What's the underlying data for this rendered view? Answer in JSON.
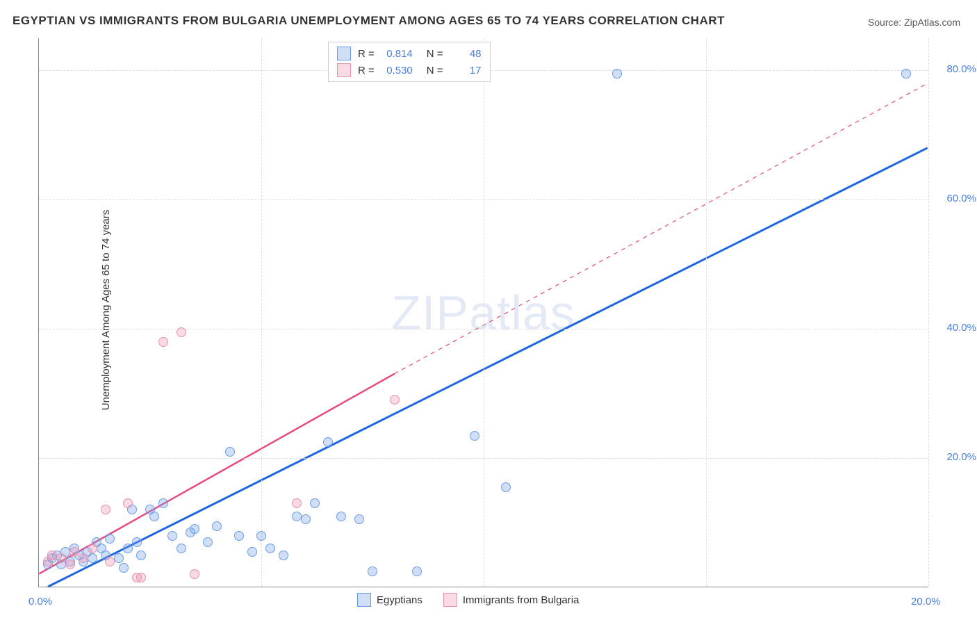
{
  "title": "EGYPTIAN VS IMMIGRANTS FROM BULGARIA UNEMPLOYMENT AMONG AGES 65 TO 74 YEARS CORRELATION CHART",
  "source": "Source: ZipAtlas.com",
  "y_axis_label": "Unemployment Among Ages 65 to 74 years",
  "watermark": "ZIPatlas",
  "chart": {
    "type": "scatter",
    "xlim": [
      0,
      20
    ],
    "ylim": [
      0,
      85
    ],
    "x_ticks": [
      0,
      5,
      10,
      15,
      20
    ],
    "x_tick_labels": [
      "0.0%",
      "",
      "",
      "",
      "20.0%"
    ],
    "y_ticks": [
      20,
      40,
      60,
      80
    ],
    "y_tick_labels": [
      "20.0%",
      "40.0%",
      "60.0%",
      "80.0%"
    ],
    "background_color": "#ffffff",
    "grid_color": "#dddddd",
    "series": [
      {
        "name": "Egyptians",
        "color_fill": "rgba(120,160,230,0.35)",
        "color_stroke": "#6a9de8",
        "marker_radius": 7,
        "r_value": "0.814",
        "n_value": "48",
        "trend": {
          "color": "#1e66e0",
          "width": 3,
          "x1": 0.2,
          "y1": 0,
          "x2": 20,
          "y2": 68,
          "dash_from_x": 20
        },
        "points": [
          [
            0.2,
            3.5
          ],
          [
            0.3,
            4.5
          ],
          [
            0.4,
            5
          ],
          [
            0.5,
            3.5
          ],
          [
            0.6,
            5.5
          ],
          [
            0.7,
            4
          ],
          [
            0.8,
            6
          ],
          [
            0.9,
            5
          ],
          [
            1.0,
            4
          ],
          [
            1.1,
            5.5
          ],
          [
            1.2,
            4.5
          ],
          [
            1.3,
            7
          ],
          [
            1.4,
            6
          ],
          [
            1.5,
            5
          ],
          [
            1.6,
            7.5
          ],
          [
            1.8,
            4.5
          ],
          [
            1.9,
            3
          ],
          [
            2.0,
            6
          ],
          [
            2.1,
            12
          ],
          [
            2.2,
            7
          ],
          [
            2.3,
            5
          ],
          [
            2.5,
            12
          ],
          [
            2.6,
            11
          ],
          [
            2.8,
            13
          ],
          [
            3.0,
            8
          ],
          [
            3.2,
            6
          ],
          [
            3.4,
            8.5
          ],
          [
            3.5,
            9
          ],
          [
            3.8,
            7
          ],
          [
            4.0,
            9.5
          ],
          [
            4.3,
            21
          ],
          [
            4.5,
            8
          ],
          [
            4.8,
            5.5
          ],
          [
            5.0,
            8
          ],
          [
            5.2,
            6
          ],
          [
            5.5,
            5
          ],
          [
            5.8,
            11
          ],
          [
            6.0,
            10.5
          ],
          [
            6.5,
            22.5
          ],
          [
            6.8,
            11
          ],
          [
            7.2,
            10.5
          ],
          [
            7.5,
            2.5
          ],
          [
            8.5,
            2.5
          ],
          [
            9.8,
            23.5
          ],
          [
            10.5,
            15.5
          ],
          [
            13.0,
            79.5
          ],
          [
            19.5,
            79.5
          ],
          [
            6.2,
            13
          ]
        ]
      },
      {
        "name": "Immigrants from Bulgaria",
        "color_fill": "rgba(240,150,175,0.35)",
        "color_stroke": "#e88fb0",
        "marker_radius": 7,
        "r_value": "0.530",
        "n_value": "17",
        "trend": {
          "color": "#e64a7f",
          "width": 2.5,
          "x1": 0,
          "y1": 2,
          "x2": 8,
          "y2": 33,
          "dash_from_x": 8,
          "dash_to_x": 20,
          "dash_to_y": 78
        },
        "points": [
          [
            0.2,
            4
          ],
          [
            0.3,
            5
          ],
          [
            0.5,
            4.5
          ],
          [
            0.7,
            3.5
          ],
          [
            0.8,
            5.5
          ],
          [
            1.0,
            4.5
          ],
          [
            1.2,
            6
          ],
          [
            1.5,
            12
          ],
          [
            1.6,
            4
          ],
          [
            2.0,
            13
          ],
          [
            2.2,
            1.5
          ],
          [
            2.3,
            1.5
          ],
          [
            2.8,
            38
          ],
          [
            3.2,
            39.5
          ],
          [
            3.5,
            2
          ],
          [
            5.8,
            13
          ],
          [
            8.0,
            29
          ]
        ]
      }
    ]
  },
  "legend": {
    "items": [
      {
        "label": "Egyptians",
        "fill": "rgba(120,160,230,0.35)",
        "stroke": "#6a9de8"
      },
      {
        "label": "Immigrants from Bulgaria",
        "fill": "rgba(240,150,175,0.35)",
        "stroke": "#e88fb0"
      }
    ]
  }
}
